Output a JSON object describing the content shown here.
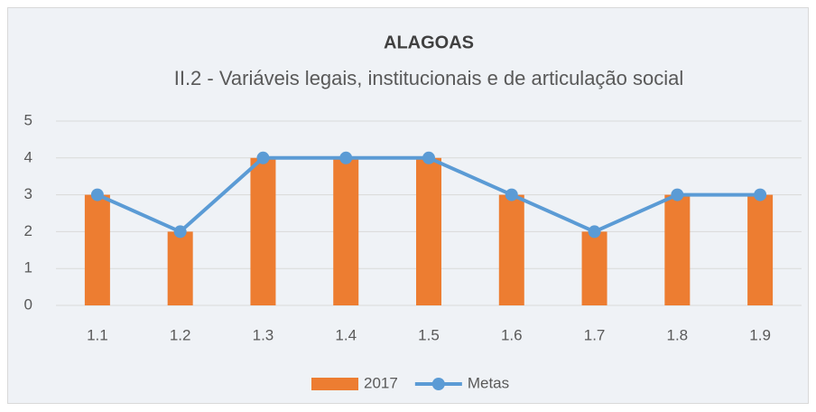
{
  "chart_data": {
    "type": "bar",
    "title": "ALAGOAS",
    "subtitle": "II.2 - Variáveis legais, institucionais e de articulação social",
    "categories": [
      "1.1",
      "1.2",
      "1.3",
      "1.4",
      "1.5",
      "1.6",
      "1.7",
      "1.8",
      "1.9"
    ],
    "series": [
      {
        "name": "2017",
        "type": "bar",
        "color": "#ed7d31",
        "values": [
          3,
          2,
          4,
          4,
          4,
          3,
          2,
          3,
          3
        ]
      },
      {
        "name": "Metas",
        "type": "line",
        "color": "#5b9bd5",
        "values": [
          3,
          2,
          4,
          4,
          4,
          3,
          2,
          3,
          3
        ]
      }
    ],
    "ylim": [
      0,
      5
    ],
    "yticks": [
      0,
      1,
      2,
      3,
      4,
      5
    ],
    "grid": true,
    "legend": "bottom"
  }
}
